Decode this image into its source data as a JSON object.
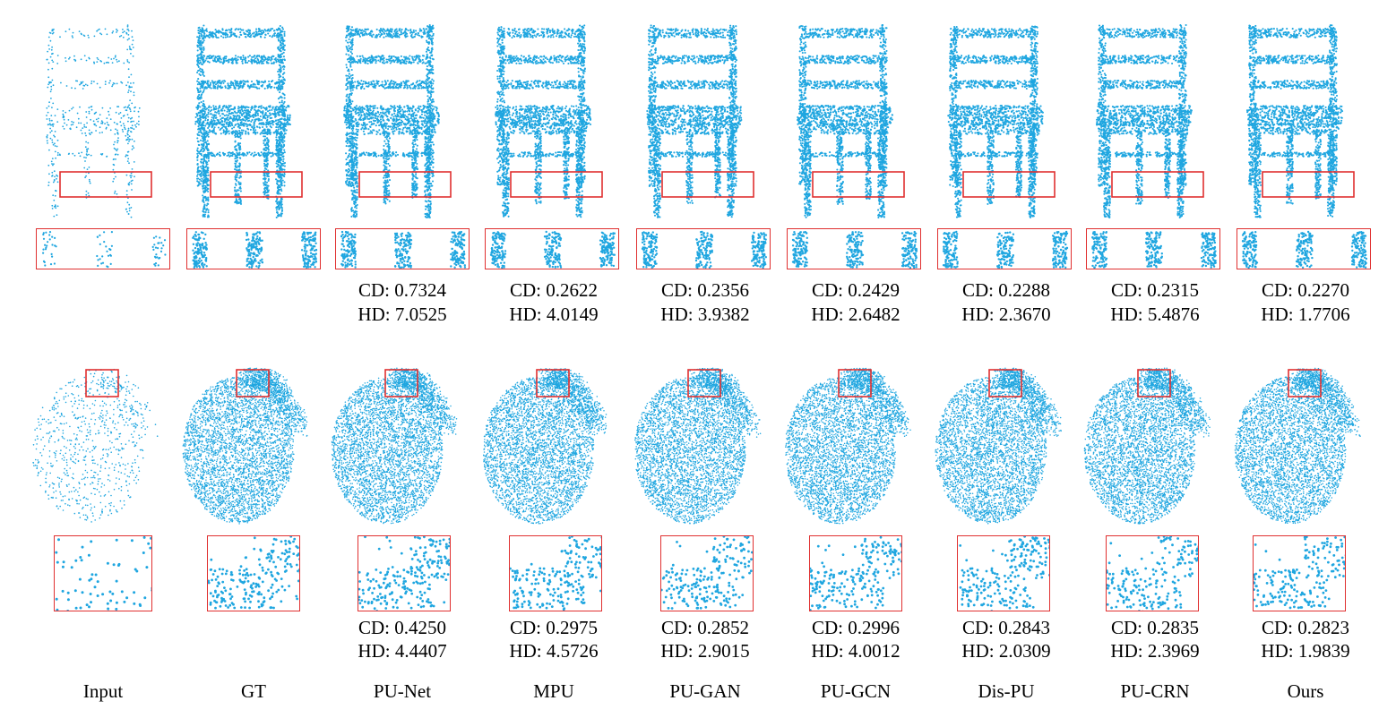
{
  "colors": {
    "points": "#1fa6e0",
    "box": "#e03030"
  },
  "methods": [
    {
      "label": "Input",
      "density": "sparse",
      "chair": null,
      "hand": null
    },
    {
      "label": "GT",
      "density": "dense",
      "chair": null,
      "hand": null
    },
    {
      "label": "PU-Net",
      "density": "dense",
      "chair": {
        "cd": "CD: 0.7324",
        "hd": "HD: 7.0525"
      },
      "hand": {
        "cd": "CD: 0.4250",
        "hd": "HD: 4.4407"
      }
    },
    {
      "label": "MPU",
      "density": "dense",
      "chair": {
        "cd": "CD: 0.2622",
        "hd": "HD: 4.0149"
      },
      "hand": {
        "cd": "CD: 0.2975",
        "hd": "HD: 4.5726"
      }
    },
    {
      "label": "PU-GAN",
      "density": "dense",
      "chair": {
        "cd": "CD: 0.2356",
        "hd": "HD: 3.9382"
      },
      "hand": {
        "cd": "CD: 0.2852",
        "hd": "HD: 2.9015"
      }
    },
    {
      "label": "PU-GCN",
      "density": "dense",
      "chair": {
        "cd": "CD: 0.2429",
        "hd": "HD: 2.6482"
      },
      "hand": {
        "cd": "CD: 0.2996",
        "hd": "HD: 4.0012"
      }
    },
    {
      "label": "Dis-PU",
      "density": "dense",
      "chair": {
        "cd": "CD: 0.2288",
        "hd": "HD: 2.3670"
      },
      "hand": {
        "cd": "CD: 0.2843",
        "hd": "HD: 2.0309"
      }
    },
    {
      "label": "PU-CRN",
      "density": "dense",
      "chair": {
        "cd": "CD: 0.2315",
        "hd": "HD: 5.4876"
      },
      "hand": {
        "cd": "CD: 0.2835",
        "hd": "HD: 2.3969"
      }
    },
    {
      "label": "Ours",
      "density": "dense",
      "chair": {
        "cd": "CD: 0.2270",
        "hd": "HD: 1.7706"
      },
      "hand": {
        "cd": "CD: 0.2823",
        "hd": "HD: 1.9839"
      }
    }
  ]
}
